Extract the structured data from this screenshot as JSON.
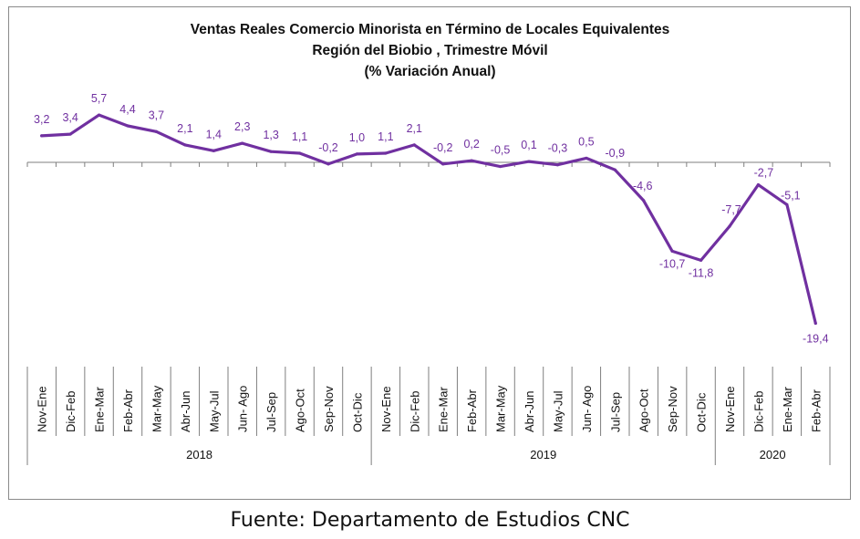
{
  "title_lines": [
    "Ventas Reales Comercio Minorista  en Término de Locales Equivalentes",
    "Región del Biobio , Trimestre Móvil",
    "(% Variación Anual)"
  ],
  "source": "Fuente: Departamento de Estudios CNC",
  "colors": {
    "line": "#7030a0",
    "label": "#7030a0",
    "axis": "#7f7f7f",
    "text": "#111111"
  },
  "chart_data": {
    "type": "line",
    "categories": [
      "Nov-Ene",
      "Dic-Feb",
      "Ene-Mar",
      "Feb-Abr",
      "Mar-May",
      "Abr-Jun",
      "May-Jul",
      "Jun- Ago",
      "Jul-Sep",
      "Ago-Oct",
      "Sep-Nov",
      "Oct-Dic",
      "Nov-Ene",
      "Dic-Feb",
      "Ene-Mar",
      "Feb-Abr",
      "Mar-May",
      "Abr-Jun",
      "May-Jul",
      "Jun- Ago",
      "Jul-Sep",
      "Ago-Oct",
      "Sep-Nov",
      "Oct-Dic",
      "Nov-Ene",
      "Dic-Feb",
      "Ene-Mar",
      "Feb-Abr"
    ],
    "values": [
      3.2,
      3.4,
      5.7,
      4.4,
      3.7,
      2.1,
      1.4,
      2.3,
      1.3,
      1.1,
      -0.2,
      1.0,
      1.1,
      2.1,
      -0.2,
      0.2,
      -0.5,
      0.1,
      -0.3,
      0.5,
      -0.9,
      -4.6,
      -10.7,
      -11.8,
      -7.7,
      -2.7,
      -5.1,
      -19.4
    ],
    "value_labels": [
      "3,2",
      "3,4",
      "5,7",
      "4,4",
      "3,7",
      "2,1",
      "1,4",
      "2,3",
      "1,3",
      "1,1",
      "-0,2",
      "1,0",
      "1,1",
      "2,1",
      "-0,2",
      "0,2",
      "-0,5",
      "0,1",
      "-0,3",
      "0,5",
      "-0,9",
      "-4,6",
      "-10,7",
      "-11,8",
      "-7,7",
      "-2,7",
      "-5,1",
      "-19,4"
    ],
    "year_groups": [
      {
        "label": "2018",
        "count": 12
      },
      {
        "label": "2019",
        "count": 12
      },
      {
        "label": "2020",
        "count": 4
      }
    ],
    "ylim": [
      -20,
      7
    ],
    "grid": false,
    "legend": "none"
  }
}
